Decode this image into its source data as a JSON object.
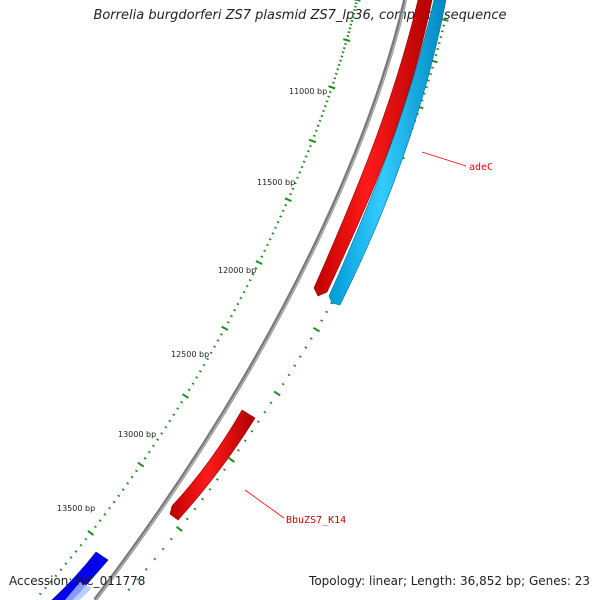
{
  "title": "Borrelia burgdorferi ZS7 plasmid ZS7_lp36, complete sequence",
  "footer": {
    "accession": "Accession: NC_011778",
    "summary": "Topology: linear; Length: 36,852 bp; Genes: 23"
  },
  "scale": {
    "tick_labels": [
      "11000 bp",
      "11500 bp",
      "12000 bp",
      "12500 bp",
      "13000 bp",
      "13500 bp"
    ]
  },
  "genes": [
    {
      "label": "adeC",
      "color": "#ff0000"
    },
    {
      "label": "BbuZS7_K14",
      "color": "#ff0000"
    }
  ],
  "colors": {
    "backbone": "#808080",
    "forward_gene": "#ff0000",
    "reverse_gene": "#00bfff",
    "other_gene": "#0000ff",
    "ticks": "#228b22",
    "label_line": "#ff0000"
  }
}
